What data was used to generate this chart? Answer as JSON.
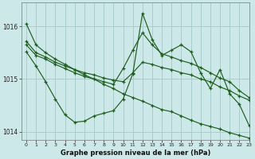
{
  "title": "Graphe pression niveau de la mer (hPa)",
  "bg_color": "#cce8e8",
  "grid_color": "#aacccc",
  "line_color": "#1e5e1e",
  "xlim": [
    -0.5,
    23
  ],
  "ylim": [
    1013.85,
    1016.45
  ],
  "yticks": [
    1014,
    1015,
    1016
  ],
  "xticks": [
    0,
    1,
    2,
    3,
    4,
    5,
    6,
    7,
    8,
    9,
    10,
    11,
    12,
    13,
    14,
    15,
    16,
    17,
    18,
    19,
    20,
    21,
    22,
    23
  ],
  "lines": [
    [
      1016.05,
      1015.65,
      1015.5,
      1015.38,
      1015.28,
      1015.18,
      1015.08,
      1015.0,
      1014.9,
      1014.82,
      1014.72,
      1014.65,
      1014.58,
      1014.5,
      1014.42,
      1014.38,
      1014.3,
      1014.22,
      1014.15,
      1014.1,
      1014.05,
      1013.98,
      1013.93,
      1013.88
    ],
    [
      1015.72,
      1015.5,
      1015.42,
      1015.32,
      1015.25,
      1015.18,
      1015.12,
      1015.08,
      1015.02,
      1014.98,
      1014.95,
      1015.12,
      1015.32,
      1015.28,
      1015.22,
      1015.18,
      1015.12,
      1015.08,
      1015.0,
      1014.95,
      1014.85,
      1014.78,
      1014.68,
      1014.6
    ],
    [
      1015.65,
      1015.45,
      1015.38,
      1015.28,
      1015.2,
      1015.12,
      1015.05,
      1015.0,
      1014.95,
      1014.9,
      1015.2,
      1015.55,
      1015.88,
      1015.65,
      1015.48,
      1015.42,
      1015.35,
      1015.3,
      1015.22,
      1015.12,
      1015.02,
      1014.95,
      1014.78,
      1014.65
    ],
    [
      1015.52,
      1015.25,
      1014.95,
      1014.62,
      1014.32,
      1014.18,
      1014.2,
      1014.3,
      1014.35,
      1014.4,
      1014.62,
      1015.1,
      1016.25,
      1015.75,
      1015.45,
      1015.55,
      1015.65,
      1015.52,
      1015.12,
      1014.82,
      1015.18,
      1014.72,
      1014.52,
      1014.12
    ]
  ]
}
